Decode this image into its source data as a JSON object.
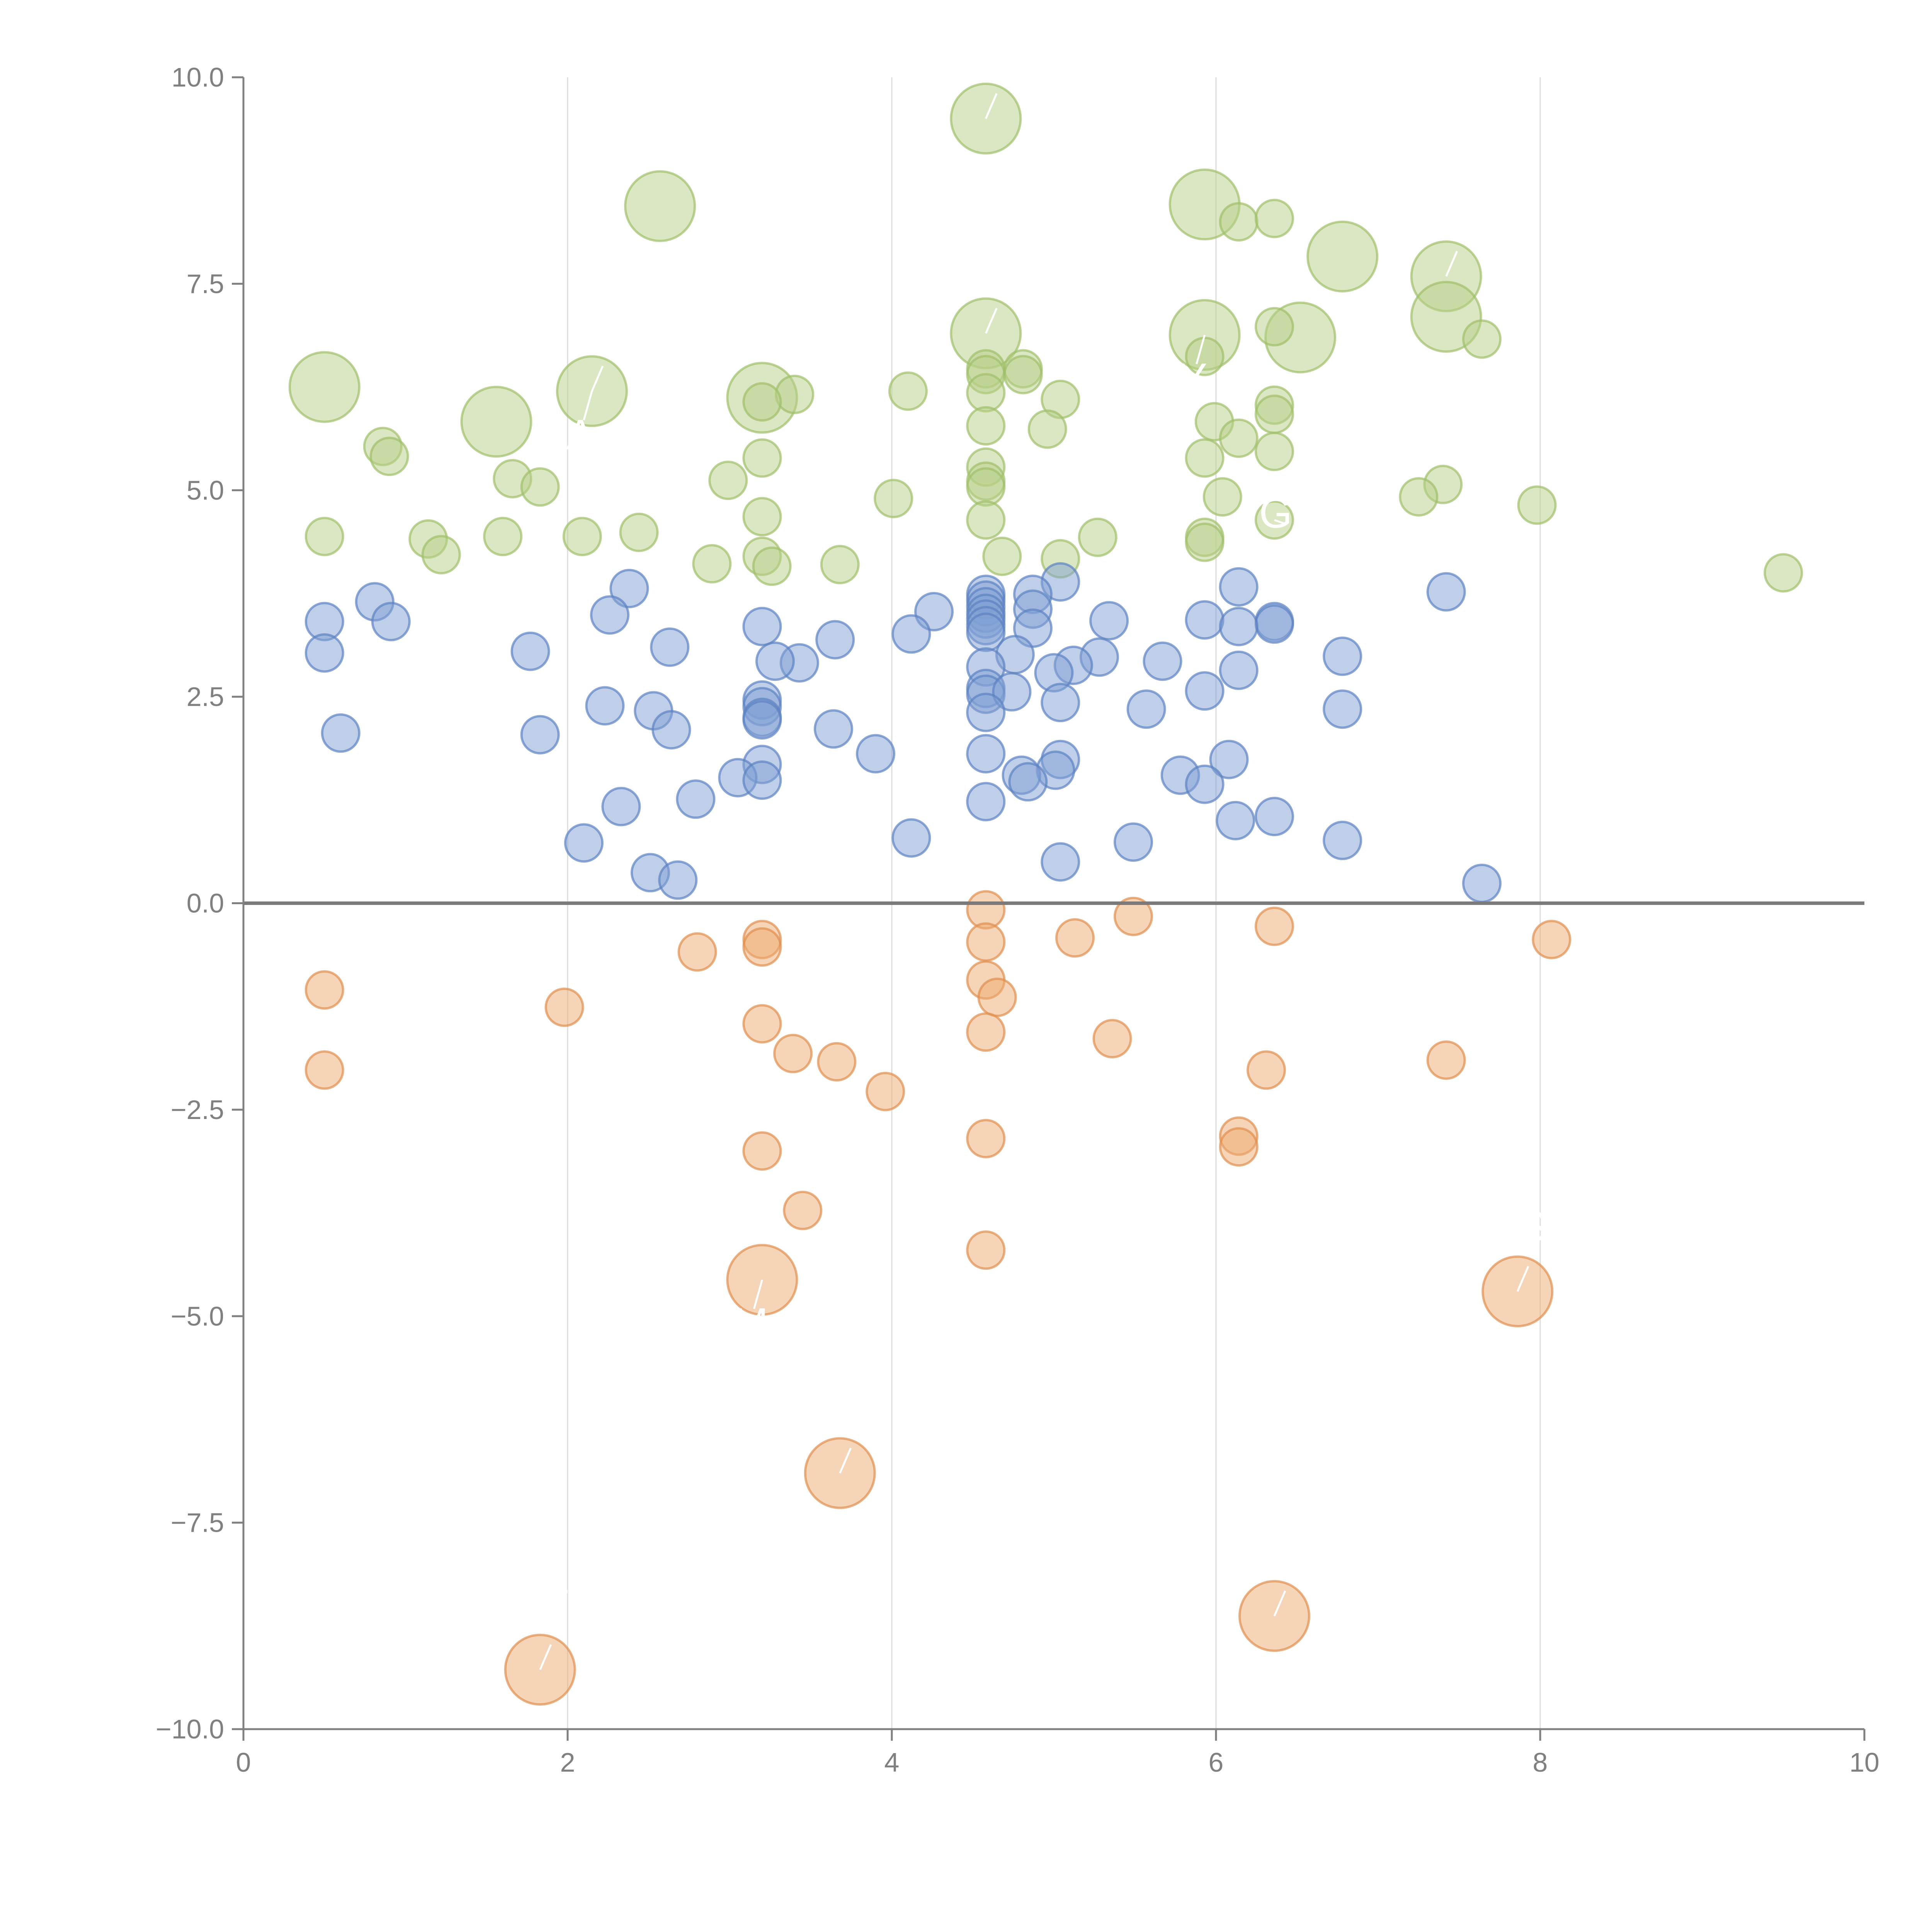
{
  "chart_data": {
    "type": "scatter",
    "title": "",
    "xlabel": "",
    "ylabel": "",
    "xlim": [
      0,
      10
    ],
    "ylim": [
      -10,
      10
    ],
    "x_ticks": [
      0,
      2,
      4,
      6,
      8,
      10
    ],
    "y_ticks": [
      10.0,
      7.5,
      5.0,
      2.5,
      0.0,
      -2.5,
      -5.0,
      -7.5,
      -10.0
    ],
    "x_tick_labels": [
      "0",
      "2",
      "4",
      "6",
      "8",
      "10"
    ],
    "y_tick_labels": [
      "10.0",
      "7.5",
      "5.0",
      "2.5",
      "0.0",
      "−2.5",
      "−5.0",
      "−7.5",
      "−10.0"
    ],
    "vertical_grid": true,
    "zero_line": true,
    "colors": {
      "green_fill": "#b5cf85",
      "green_stroke": "#9fbf6a",
      "blue_fill": "#7f9fd3",
      "blue_stroke": "#5c82c2",
      "orange_fill": "#eda96f",
      "orange_stroke": "#df8f4e",
      "axis": "#808080",
      "grid": "#dcdcdc"
    },
    "series": [
      {
        "name": "green",
        "points": [
          {
            "x": 2.57,
            "y": 8.44,
            "s": 3
          },
          {
            "x": 4.58,
            "y": 9.5,
            "s": 3
          },
          {
            "x": 5.93,
            "y": 8.46,
            "s": 3
          },
          {
            "x": 6.78,
            "y": 7.83,
            "s": 3
          },
          {
            "x": 7.42,
            "y": 7.59,
            "s": 3
          },
          {
            "x": 7.42,
            "y": 7.1,
            "s": 3
          },
          {
            "x": 4.58,
            "y": 6.9,
            "s": 3
          },
          {
            "x": 5.93,
            "y": 6.88,
            "s": 3
          },
          {
            "x": 6.52,
            "y": 6.85,
            "s": 3
          },
          {
            "x": 0.5,
            "y": 6.25,
            "s": 3
          },
          {
            "x": 2.15,
            "y": 6.2,
            "s": 3
          },
          {
            "x": 3.2,
            "y": 6.12,
            "s": 3
          },
          {
            "x": 1.56,
            "y": 5.83,
            "s": 3
          },
          {
            "x": 6.14,
            "y": 8.25,
            "s": 1
          },
          {
            "x": 6.36,
            "y": 8.29,
            "s": 1
          },
          {
            "x": 7.64,
            "y": 6.83,
            "s": 1
          },
          {
            "x": 6.36,
            "y": 6.98,
            "s": 1
          },
          {
            "x": 5.93,
            "y": 6.62,
            "s": 1
          },
          {
            "x": 4.58,
            "y": 6.47,
            "s": 1
          },
          {
            "x": 4.58,
            "y": 6.4,
            "s": 1
          },
          {
            "x": 4.81,
            "y": 6.47,
            "s": 1
          },
          {
            "x": 4.81,
            "y": 6.4,
            "s": 1
          },
          {
            "x": 3.4,
            "y": 6.16,
            "s": 1
          },
          {
            "x": 4.1,
            "y": 6.2,
            "s": 1
          },
          {
            "x": 4.58,
            "y": 6.18,
            "s": 1
          },
          {
            "x": 5.04,
            "y": 6.1,
            "s": 1
          },
          {
            "x": 3.2,
            "y": 6.07,
            "s": 1
          },
          {
            "x": 6.36,
            "y": 6.03,
            "s": 1
          },
          {
            "x": 6.36,
            "y": 5.92,
            "s": 1
          },
          {
            "x": 5.99,
            "y": 5.83,
            "s": 1
          },
          {
            "x": 4.58,
            "y": 5.78,
            "s": 1
          },
          {
            "x": 4.96,
            "y": 5.74,
            "s": 1
          },
          {
            "x": 6.14,
            "y": 5.63,
            "s": 1
          },
          {
            "x": 0.86,
            "y": 5.53,
            "s": 1
          },
          {
            "x": 0.9,
            "y": 5.41,
            "s": 1
          },
          {
            "x": 3.2,
            "y": 5.39,
            "s": 1
          },
          {
            "x": 5.93,
            "y": 5.39,
            "s": 1
          },
          {
            "x": 6.36,
            "y": 5.47,
            "s": 1
          },
          {
            "x": 4.58,
            "y": 5.28,
            "s": 1
          },
          {
            "x": 1.66,
            "y": 5.14,
            "s": 1
          },
          {
            "x": 1.83,
            "y": 5.04,
            "s": 1
          },
          {
            "x": 2.99,
            "y": 5.12,
            "s": 1
          },
          {
            "x": 4.58,
            "y": 5.11,
            "s": 1
          },
          {
            "x": 4.58,
            "y": 5.04,
            "s": 1
          },
          {
            "x": 7.4,
            "y": 5.07,
            "s": 1
          },
          {
            "x": 7.25,
            "y": 4.92,
            "s": 1
          },
          {
            "x": 6.04,
            "y": 4.92,
            "s": 1
          },
          {
            "x": 4.01,
            "y": 4.9,
            "s": 1
          },
          {
            "x": 7.98,
            "y": 4.82,
            "s": 1
          },
          {
            "x": 3.2,
            "y": 4.68,
            "s": 1
          },
          {
            "x": 4.58,
            "y": 4.64,
            "s": 1
          },
          {
            "x": 6.36,
            "y": 4.64,
            "s": 1
          },
          {
            "x": 2.44,
            "y": 4.49,
            "s": 1
          },
          {
            "x": 0.5,
            "y": 4.44,
            "s": 1
          },
          {
            "x": 1.14,
            "y": 4.41,
            "s": 1
          },
          {
            "x": 1.6,
            "y": 4.44,
            "s": 1
          },
          {
            "x": 2.09,
            "y": 4.44,
            "s": 1
          },
          {
            "x": 5.27,
            "y": 4.43,
            "s": 1
          },
          {
            "x": 5.93,
            "y": 4.43,
            "s": 1
          },
          {
            "x": 5.93,
            "y": 4.37,
            "s": 1
          },
          {
            "x": 1.22,
            "y": 4.22,
            "s": 1
          },
          {
            "x": 3.2,
            "y": 4.2,
            "s": 1
          },
          {
            "x": 4.68,
            "y": 4.2,
            "s": 1
          },
          {
            "x": 5.04,
            "y": 4.17,
            "s": 1
          },
          {
            "x": 2.89,
            "y": 4.11,
            "s": 1
          },
          {
            "x": 3.26,
            "y": 4.08,
            "s": 1
          },
          {
            "x": 3.68,
            "y": 4.1,
            "s": 1
          },
          {
            "x": 9.5,
            "y": 4.0,
            "s": 1
          }
        ]
      },
      {
        "name": "blue",
        "points": [
          {
            "x": 4.58,
            "y": 3.74,
            "s": 1
          },
          {
            "x": 4.58,
            "y": 3.67,
            "s": 1
          },
          {
            "x": 4.58,
            "y": 3.59,
            "s": 1
          },
          {
            "x": 4.58,
            "y": 3.51,
            "s": 1
          },
          {
            "x": 4.58,
            "y": 3.44,
            "s": 1
          },
          {
            "x": 4.58,
            "y": 3.36,
            "s": 1
          },
          {
            "x": 4.58,
            "y": 3.28,
            "s": 1
          },
          {
            "x": 5.04,
            "y": 3.89,
            "s": 1
          },
          {
            "x": 6.14,
            "y": 3.83,
            "s": 1
          },
          {
            "x": 2.38,
            "y": 3.81,
            "s": 1
          },
          {
            "x": 7.42,
            "y": 3.77,
            "s": 1
          },
          {
            "x": 4.87,
            "y": 3.74,
            "s": 1
          },
          {
            "x": 0.81,
            "y": 3.65,
            "s": 1
          },
          {
            "x": 4.87,
            "y": 3.56,
            "s": 1
          },
          {
            "x": 4.26,
            "y": 3.53,
            "s": 1
          },
          {
            "x": 2.26,
            "y": 3.49,
            "s": 1
          },
          {
            "x": 0.5,
            "y": 3.41,
            "s": 1
          },
          {
            "x": 0.91,
            "y": 3.41,
            "s": 1
          },
          {
            "x": 5.93,
            "y": 3.43,
            "s": 1
          },
          {
            "x": 5.34,
            "y": 3.42,
            "s": 1
          },
          {
            "x": 6.36,
            "y": 3.41,
            "s": 1
          },
          {
            "x": 6.36,
            "y": 3.38,
            "s": 1
          },
          {
            "x": 6.14,
            "y": 3.35,
            "s": 1
          },
          {
            "x": 3.2,
            "y": 3.35,
            "s": 1
          },
          {
            "x": 4.87,
            "y": 3.33,
            "s": 1
          },
          {
            "x": 4.12,
            "y": 3.26,
            "s": 1
          },
          {
            "x": 3.65,
            "y": 3.19,
            "s": 1
          },
          {
            "x": 2.63,
            "y": 3.1,
            "s": 1
          },
          {
            "x": 0.5,
            "y": 3.03,
            "s": 1
          },
          {
            "x": 1.77,
            "y": 3.05,
            "s": 1
          },
          {
            "x": 4.76,
            "y": 3.01,
            "s": 1
          },
          {
            "x": 6.78,
            "y": 2.99,
            "s": 1
          },
          {
            "x": 5.28,
            "y": 2.98,
            "s": 1
          },
          {
            "x": 5.67,
            "y": 2.93,
            "s": 1
          },
          {
            "x": 3.43,
            "y": 2.91,
            "s": 1
          },
          {
            "x": 3.28,
            "y": 2.93,
            "s": 1
          },
          {
            "x": 5.12,
            "y": 2.88,
            "s": 1
          },
          {
            "x": 4.58,
            "y": 2.86,
            "s": 1
          },
          {
            "x": 6.14,
            "y": 2.82,
            "s": 1
          },
          {
            "x": 5.0,
            "y": 2.79,
            "s": 1
          },
          {
            "x": 4.58,
            "y": 2.6,
            "s": 1
          },
          {
            "x": 4.58,
            "y": 2.53,
            "s": 1
          },
          {
            "x": 4.74,
            "y": 2.56,
            "s": 1
          },
          {
            "x": 5.93,
            "y": 2.57,
            "s": 1
          },
          {
            "x": 3.2,
            "y": 2.46,
            "s": 1
          },
          {
            "x": 3.2,
            "y": 2.38,
            "s": 1
          },
          {
            "x": 5.04,
            "y": 2.43,
            "s": 1
          },
          {
            "x": 2.23,
            "y": 2.39,
            "s": 1
          },
          {
            "x": 6.78,
            "y": 2.35,
            "s": 1
          },
          {
            "x": 5.57,
            "y": 2.35,
            "s": 1
          },
          {
            "x": 2.53,
            "y": 2.33,
            "s": 1
          },
          {
            "x": 4.58,
            "y": 2.31,
            "s": 1
          },
          {
            "x": 3.2,
            "y": 2.25,
            "s": 1
          },
          {
            "x": 3.2,
            "y": 2.22,
            "s": 1
          },
          {
            "x": 3.64,
            "y": 2.11,
            "s": 1
          },
          {
            "x": 2.64,
            "y": 2.1,
            "s": 1
          },
          {
            "x": 0.6,
            "y": 2.06,
            "s": 1
          },
          {
            "x": 1.83,
            "y": 2.04,
            "s": 1
          },
          {
            "x": 3.9,
            "y": 1.81,
            "s": 1
          },
          {
            "x": 4.58,
            "y": 1.81,
            "s": 1
          },
          {
            "x": 5.04,
            "y": 1.74,
            "s": 1
          },
          {
            "x": 6.08,
            "y": 1.74,
            "s": 1
          },
          {
            "x": 3.2,
            "y": 1.68,
            "s": 1
          },
          {
            "x": 5.01,
            "y": 1.61,
            "s": 1
          },
          {
            "x": 4.8,
            "y": 1.55,
            "s": 1
          },
          {
            "x": 4.84,
            "y": 1.47,
            "s": 1
          },
          {
            "x": 5.78,
            "y": 1.55,
            "s": 1
          },
          {
            "x": 3.05,
            "y": 1.52,
            "s": 1
          },
          {
            "x": 3.2,
            "y": 1.49,
            "s": 1
          },
          {
            "x": 5.93,
            "y": 1.44,
            "s": 1
          },
          {
            "x": 2.79,
            "y": 1.26,
            "s": 1
          },
          {
            "x": 4.58,
            "y": 1.23,
            "s": 1
          },
          {
            "x": 2.33,
            "y": 1.17,
            "s": 1
          },
          {
            "x": 6.36,
            "y": 1.05,
            "s": 1
          },
          {
            "x": 6.12,
            "y": 1.0,
            "s": 1
          },
          {
            "x": 4.12,
            "y": 0.79,
            "s": 1
          },
          {
            "x": 6.78,
            "y": 0.76,
            "s": 1
          },
          {
            "x": 5.49,
            "y": 0.74,
            "s": 1
          },
          {
            "x": 2.1,
            "y": 0.73,
            "s": 1
          },
          {
            "x": 5.04,
            "y": 0.5,
            "s": 1
          },
          {
            "x": 2.51,
            "y": 0.37,
            "s": 1
          },
          {
            "x": 2.68,
            "y": 0.28,
            "s": 1
          },
          {
            "x": 7.64,
            "y": 0.24,
            "s": 1
          }
        ]
      },
      {
        "name": "orange",
        "points": [
          {
            "x": 4.58,
            "y": -0.08,
            "s": 1
          },
          {
            "x": 5.49,
            "y": -0.16,
            "s": 1
          },
          {
            "x": 6.36,
            "y": -0.28,
            "s": 1
          },
          {
            "x": 3.2,
            "y": -0.44,
            "s": 1
          },
          {
            "x": 5.13,
            "y": -0.42,
            "s": 1
          },
          {
            "x": 8.07,
            "y": -0.44,
            "s": 1
          },
          {
            "x": 4.58,
            "y": -0.47,
            "s": 1
          },
          {
            "x": 3.2,
            "y": -0.53,
            "s": 1
          },
          {
            "x": 2.8,
            "y": -0.59,
            "s": 1
          },
          {
            "x": 4.58,
            "y": -0.93,
            "s": 1
          },
          {
            "x": 0.5,
            "y": -1.05,
            "s": 1
          },
          {
            "x": 4.65,
            "y": -1.14,
            "s": 1
          },
          {
            "x": 1.98,
            "y": -1.26,
            "s": 1
          },
          {
            "x": 3.2,
            "y": -1.46,
            "s": 1
          },
          {
            "x": 4.58,
            "y": -1.56,
            "s": 1
          },
          {
            "x": 5.36,
            "y": -1.64,
            "s": 1
          },
          {
            "x": 3.39,
            "y": -1.82,
            "s": 1
          },
          {
            "x": 7.42,
            "y": -1.9,
            "s": 1
          },
          {
            "x": 3.66,
            "y": -1.92,
            "s": 1
          },
          {
            "x": 0.5,
            "y": -2.02,
            "s": 1
          },
          {
            "x": 6.31,
            "y": -2.02,
            "s": 1
          },
          {
            "x": 3.96,
            "y": -2.28,
            "s": 1
          },
          {
            "x": 6.14,
            "y": -2.82,
            "s": 1
          },
          {
            "x": 4.58,
            "y": -2.85,
            "s": 1
          },
          {
            "x": 6.14,
            "y": -2.95,
            "s": 1
          },
          {
            "x": 3.2,
            "y": -3.0,
            "s": 1
          },
          {
            "x": 3.45,
            "y": -3.72,
            "s": 1
          },
          {
            "x": 4.58,
            "y": -4.2,
            "s": 1
          },
          {
            "x": 3.2,
            "y": -4.56,
            "s": 3
          },
          {
            "x": 7.86,
            "y": -4.7,
            "s": 3
          },
          {
            "x": 3.68,
            "y": -6.9,
            "s": 3
          },
          {
            "x": 6.36,
            "y": -8.63,
            "s": 3
          },
          {
            "x": 1.83,
            "y": -9.28,
            "s": 3
          }
        ]
      }
    ],
    "annotations": [
      {
        "text": "WP",
        "x": 4.58,
        "y": 9.5,
        "side": "top"
      },
      {
        "text": "C",
        "x": 4.58,
        "y": 6.9,
        "side": "top"
      },
      {
        "text": "Y",
        "x": 5.93,
        "y": 6.88,
        "side": "bottom"
      },
      {
        "text": "E",
        "x": 7.42,
        "y": 7.59,
        "side": "top"
      },
      {
        "text": "E",
        "x": 2.15,
        "y": 6.2,
        "side": "top"
      },
      {
        "text": "A",
        "x": 2.15,
        "y": 6.2,
        "side": "bottom"
      },
      {
        "text": "GA",
        "x": 6.36,
        "y": 4.64,
        "side": "right"
      },
      {
        "text": "M",
        "x": 3.2,
        "y": -4.56,
        "side": "bottom"
      },
      {
        "text": "S",
        "x": 7.86,
        "y": -4.7,
        "side": "top"
      },
      {
        "text": "S",
        "x": 3.68,
        "y": -6.9,
        "side": "top"
      },
      {
        "text": "C",
        "x": 6.36,
        "y": -8.63,
        "side": "top"
      },
      {
        "text": "T",
        "x": 1.83,
        "y": -9.28,
        "side": "top"
      }
    ]
  }
}
